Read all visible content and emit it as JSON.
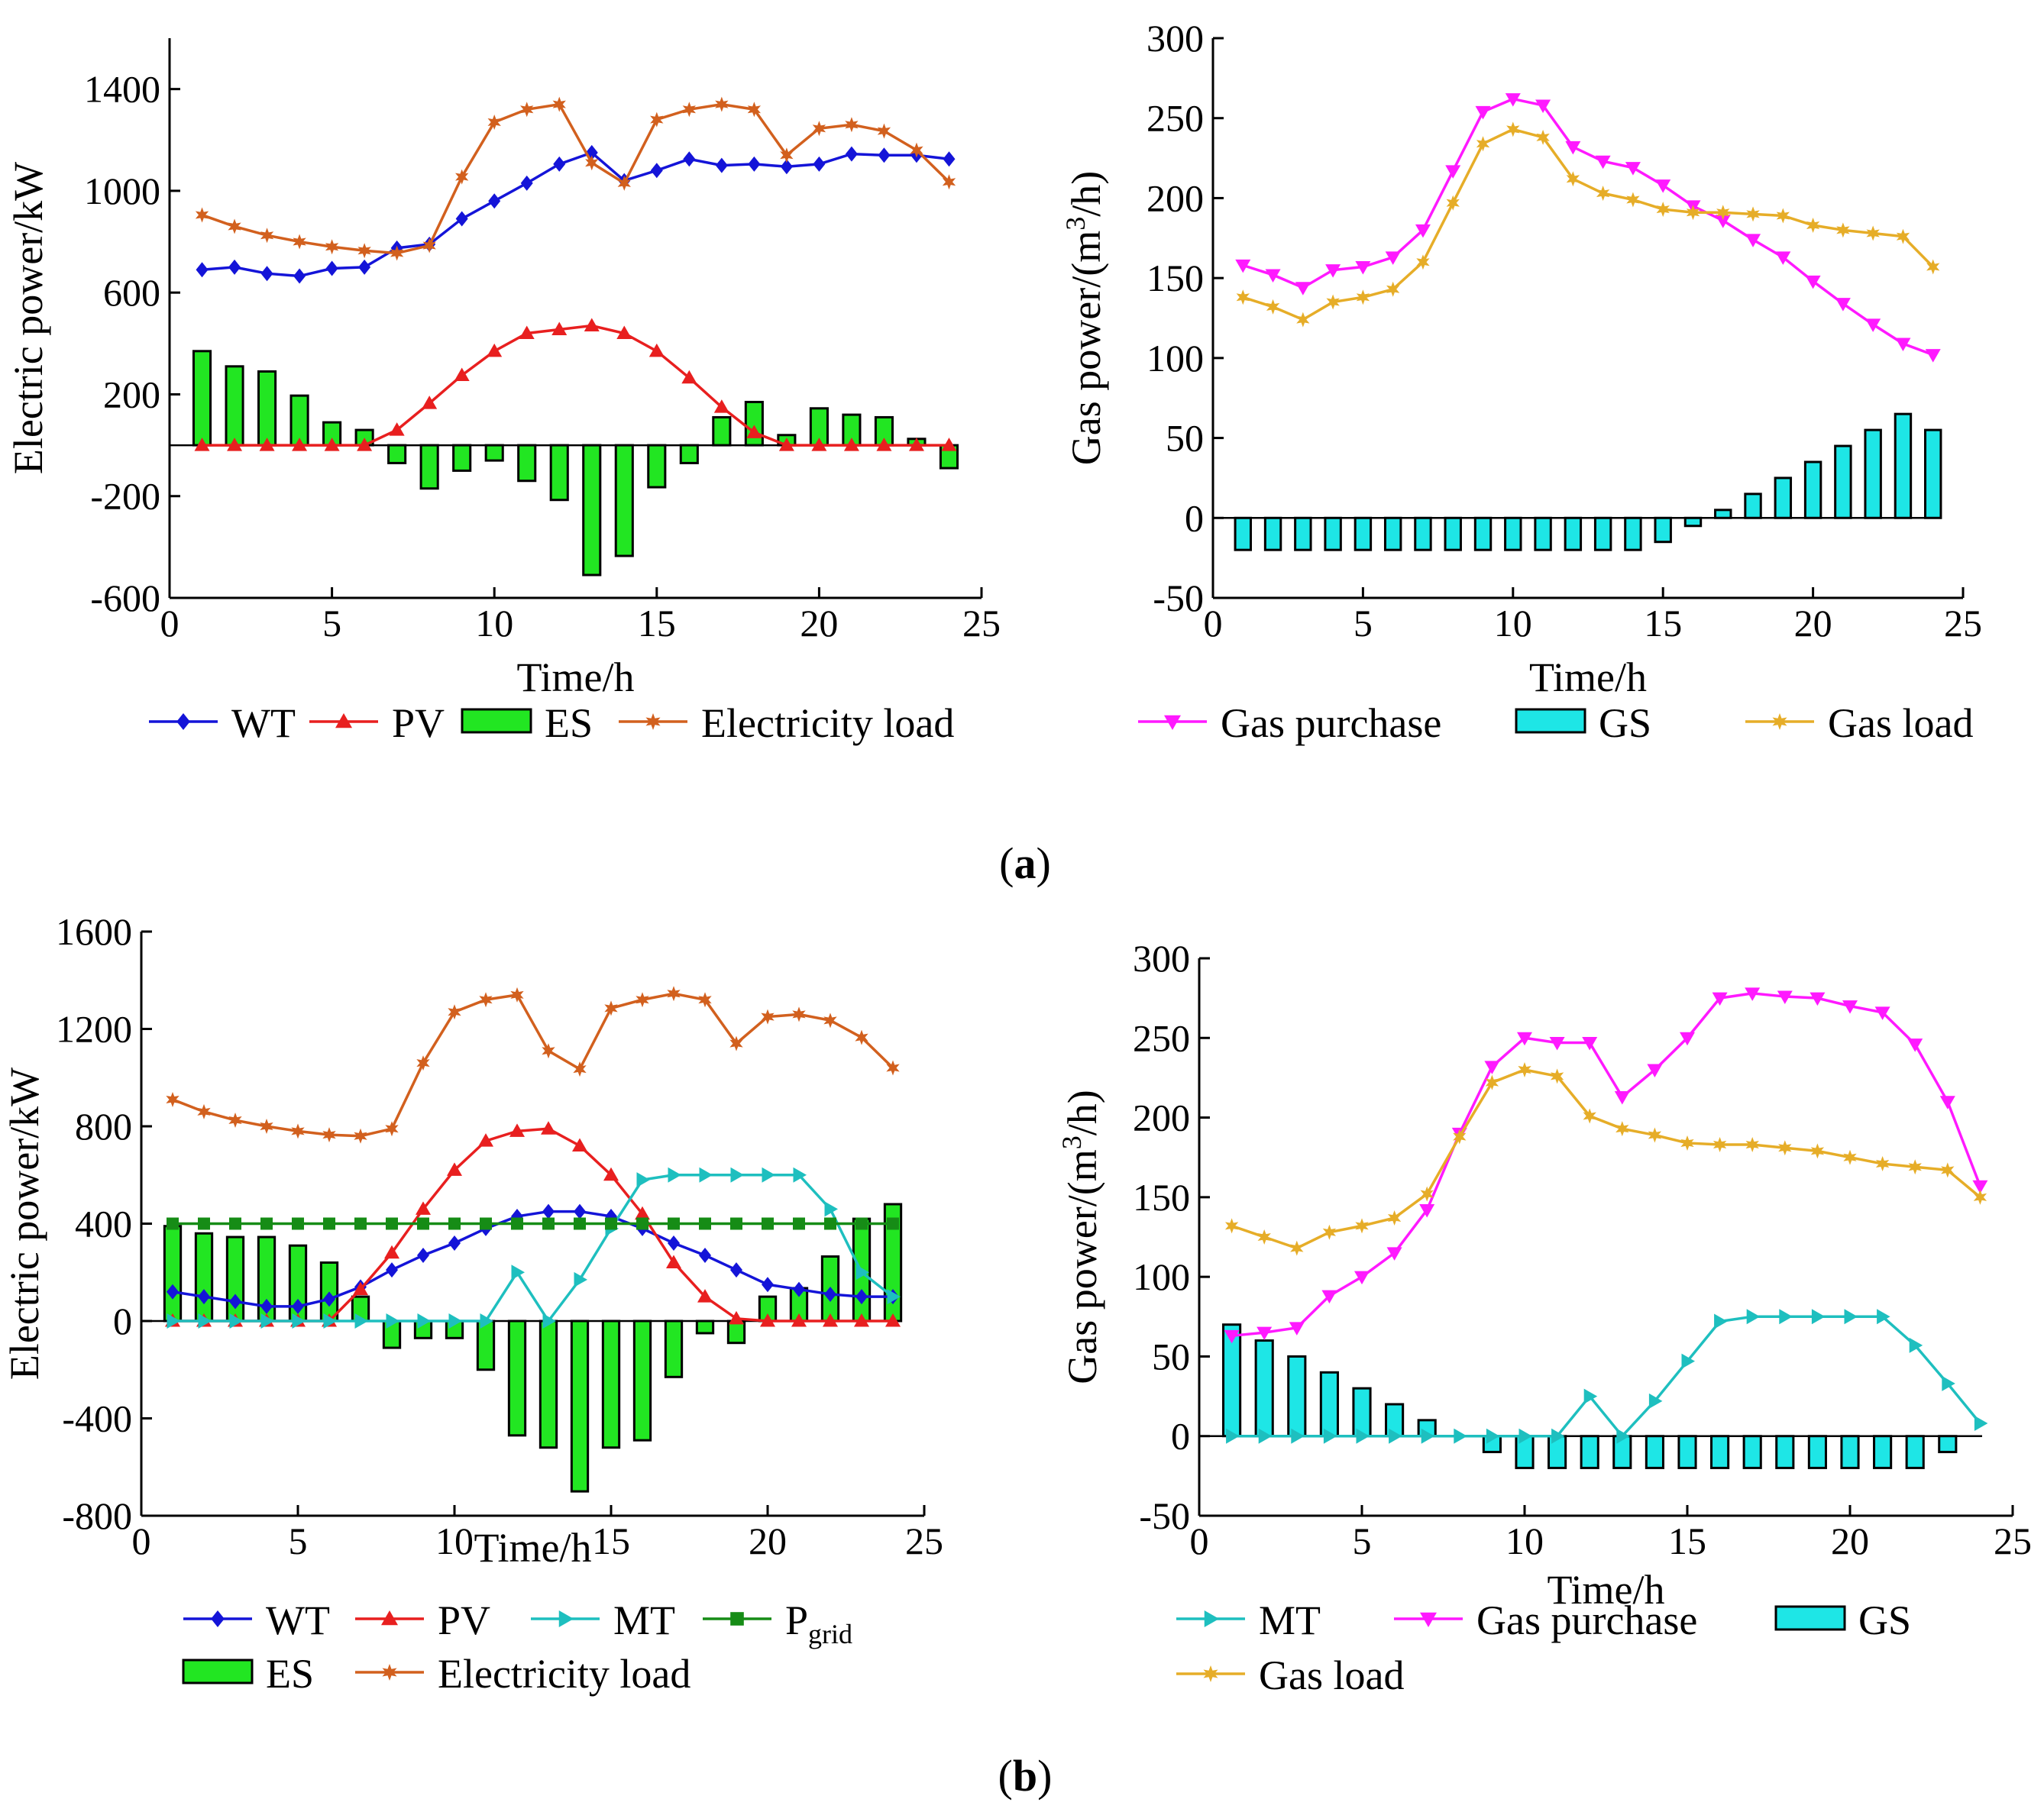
{
  "figure": {
    "panel_labels": [
      {
        "open": "(",
        "letter": "a",
        "close": ")"
      },
      {
        "open": "(",
        "letter": "b",
        "close": ")"
      }
    ]
  },
  "chart_data": [
    {
      "id": "a-electric",
      "type": "line",
      "xlabel": "Time/h",
      "ylabel": "Electric power/kW",
      "xlim": [
        0,
        25
      ],
      "ylim": [
        -600,
        1600
      ],
      "xticks": [
        0,
        5,
        10,
        15,
        20,
        25
      ],
      "yticks": [
        -600,
        -200,
        200,
        600,
        1000,
        1400
      ],
      "x": [
        1,
        2,
        3,
        4,
        5,
        6,
        7,
        8,
        9,
        10,
        11,
        12,
        13,
        14,
        15,
        16,
        17,
        18,
        19,
        20,
        21,
        22,
        23,
        24
      ],
      "series": [
        {
          "name": "WT",
          "kind": "line",
          "color": "#1414d8",
          "marker": "diamond",
          "values": [
            690,
            700,
            675,
            665,
            695,
            700,
            775,
            790,
            890,
            960,
            1030,
            1105,
            1150,
            1040,
            1080,
            1125,
            1100,
            1105,
            1095,
            1105,
            1145,
            1140,
            1140,
            1125
          ]
        },
        {
          "name": "PV",
          "kind": "line",
          "color": "#e81f1f",
          "marker": "triangle-up",
          "values": [
            0,
            0,
            0,
            0,
            0,
            0,
            60,
            165,
            275,
            370,
            440,
            455,
            470,
            440,
            370,
            265,
            150,
            50,
            0,
            0,
            0,
            0,
            0,
            0
          ]
        },
        {
          "name": "ES",
          "kind": "bar",
          "color": "#22e622",
          "values": [
            370,
            310,
            290,
            195,
            90,
            60,
            -70,
            -170,
            -100,
            -60,
            -140,
            -215,
            -510,
            -435,
            -165,
            -70,
            110,
            170,
            40,
            145,
            120,
            110,
            25,
            -90
          ]
        },
        {
          "name": "Electricity load",
          "kind": "line",
          "color": "#d2601e",
          "marker": "star",
          "values": [
            905,
            860,
            825,
            800,
            780,
            765,
            755,
            785,
            1055,
            1270,
            1320,
            1340,
            1110,
            1030,
            1280,
            1320,
            1340,
            1320,
            1140,
            1245,
            1260,
            1235,
            1160,
            1035
          ]
        }
      ],
      "legend": [
        "WT",
        "PV",
        "ES",
        "Electricity load"
      ]
    },
    {
      "id": "a-gas",
      "type": "line",
      "xlabel": "Time/h",
      "ylabel": "Gas power/(m",
      "ylabel_sup": "3",
      "ylabel_tail": "/h)",
      "xlim": [
        0,
        25
      ],
      "ylim": [
        -50,
        300
      ],
      "xticks": [
        0,
        5,
        10,
        15,
        20,
        25
      ],
      "yticks": [
        -50,
        0,
        50,
        100,
        150,
        200,
        250,
        300
      ],
      "x": [
        1,
        2,
        3,
        4,
        5,
        6,
        7,
        8,
        9,
        10,
        11,
        12,
        13,
        14,
        15,
        16,
        17,
        18,
        19,
        20,
        21,
        22,
        23,
        24
      ],
      "series": [
        {
          "name": "Gas purchase",
          "kind": "line",
          "color": "#ff19ff",
          "marker": "triangle-down",
          "values": [
            158,
            152,
            144,
            155,
            157,
            163,
            180,
            217,
            254,
            262,
            258,
            232,
            223,
            219,
            208,
            195,
            186,
            174,
            163,
            148,
            134,
            121,
            109,
            102
          ]
        },
        {
          "name": "GS",
          "kind": "bar",
          "color": "#1ee6e6",
          "values": [
            -20,
            -20,
            -20,
            -20,
            -20,
            -20,
            -20,
            -20,
            -20,
            -20,
            -20,
            -20,
            -20,
            -20,
            -15,
            -5,
            5,
            15,
            25,
            35,
            45,
            55,
            65,
            55
          ]
        },
        {
          "name": "Gas load",
          "kind": "line",
          "color": "#e6ad28",
          "marker": "star",
          "values": [
            138,
            132,
            124,
            135,
            138,
            143,
            160,
            197,
            234,
            243,
            238,
            212,
            203,
            199,
            193,
            191,
            191,
            190,
            189,
            183,
            180,
            178,
            176,
            157
          ]
        }
      ],
      "legend": [
        "Gas purchase",
        "GS",
        "Gas load"
      ]
    },
    {
      "id": "b-electric",
      "type": "line",
      "xlabel": "Time/h",
      "ylabel": "Electric power/kW",
      "xlim": [
        0,
        25
      ],
      "ylim": [
        -800,
        1600
      ],
      "xticks": [
        0,
        5,
        10,
        15,
        20,
        25
      ],
      "yticks": [
        -800,
        -400,
        0,
        400,
        800,
        1200,
        1600
      ],
      "x": [
        1,
        2,
        3,
        4,
        5,
        6,
        7,
        8,
        9,
        10,
        11,
        12,
        13,
        14,
        15,
        16,
        17,
        18,
        19,
        20,
        21,
        22,
        23,
        24
      ],
      "series": [
        {
          "name": "WT",
          "kind": "line",
          "color": "#1414d8",
          "marker": "diamond",
          "values": [
            120,
            100,
            80,
            60,
            60,
            90,
            140,
            210,
            270,
            320,
            380,
            430,
            450,
            450,
            430,
            380,
            320,
            270,
            210,
            150,
            130,
            110,
            100,
            100
          ]
        },
        {
          "name": "PV",
          "kind": "line",
          "color": "#e81f1f",
          "marker": "triangle-up",
          "values": [
            0,
            0,
            0,
            0,
            0,
            0,
            130,
            280,
            460,
            620,
            740,
            780,
            790,
            720,
            600,
            440,
            240,
            100,
            10,
            0,
            0,
            0,
            0,
            0
          ]
        },
        {
          "name": "MT",
          "kind": "line",
          "color": "#1ebfbf",
          "marker": "triangle-right",
          "values": [
            0,
            0,
            0,
            0,
            0,
            0,
            0,
            0,
            0,
            0,
            0,
            200,
            0,
            170,
            380,
            580,
            600,
            600,
            600,
            600,
            600,
            460,
            200,
            100
          ]
        },
        {
          "name": "P",
          "name_sub": "grid",
          "kind": "line",
          "color": "#168c16",
          "marker": "square",
          "values": [
            400,
            400,
            400,
            400,
            400,
            400,
            400,
            400,
            400,
            400,
            400,
            400,
            400,
            400,
            400,
            400,
            400,
            400,
            400,
            400,
            400,
            400,
            400,
            400
          ]
        },
        {
          "name": "ES",
          "kind": "bar",
          "color": "#22e622",
          "values": [
            390,
            360,
            345,
            345,
            310,
            240,
            100,
            -110,
            -70,
            -70,
            -200,
            -470,
            -520,
            -700,
            -520,
            -490,
            -230,
            -50,
            -90,
            100,
            135,
            265,
            420,
            480
          ]
        },
        {
          "name": "Electricity load",
          "kind": "line",
          "color": "#d2601e",
          "marker": "star",
          "values": [
            910,
            860,
            825,
            800,
            780,
            765,
            760,
            790,
            1060,
            1270,
            1320,
            1340,
            1110,
            1035,
            1285,
            1320,
            1345,
            1320,
            1140,
            1250,
            1260,
            1235,
            1165,
            1040
          ]
        }
      ],
      "legend": [
        "WT",
        "PV",
        "MT",
        "Pgrid",
        "ES",
        "Electricity load"
      ]
    },
    {
      "id": "b-gas",
      "type": "line",
      "xlabel": "Time/h",
      "ylabel": "Gas power/(m",
      "ylabel_sup": "3",
      "ylabel_tail": "/h)",
      "xlim": [
        0,
        25
      ],
      "ylim": [
        -50,
        300
      ],
      "xticks": [
        0,
        5,
        10,
        15,
        20,
        25
      ],
      "yticks": [
        -50,
        0,
        50,
        100,
        150,
        200,
        250,
        300
      ],
      "x": [
        1,
        2,
        3,
        4,
        5,
        6,
        7,
        8,
        9,
        10,
        11,
        12,
        13,
        14,
        15,
        16,
        17,
        18,
        19,
        20,
        21,
        22,
        23,
        24
      ],
      "series": [
        {
          "name": "MT",
          "kind": "line",
          "color": "#1ebfbf",
          "marker": "triangle-right",
          "values": [
            0,
            0,
            0,
            0,
            0,
            0,
            0,
            0,
            0,
            0,
            0,
            25,
            0,
            22,
            47,
            72,
            75,
            75,
            75,
            75,
            75,
            57,
            33,
            8
          ]
        },
        {
          "name": "Gas purchase",
          "kind": "line",
          "color": "#ff19ff",
          "marker": "triangle-down",
          "values": [
            63,
            65,
            68,
            88,
            100,
            115,
            142,
            190,
            232,
            250,
            247,
            247,
            213,
            230,
            250,
            275,
            278,
            276,
            275,
            270,
            266,
            246,
            210,
            157
          ]
        },
        {
          "name": "GS",
          "kind": "bar",
          "color": "#1ee6e6",
          "values": [
            70,
            60,
            50,
            40,
            30,
            20,
            10,
            0,
            -10,
            -20,
            -20,
            -20,
            -20,
            -20,
            -20,
            -20,
            -20,
            -20,
            -20,
            -20,
            -20,
            -20,
            -10,
            0
          ]
        },
        {
          "name": "Gas load",
          "kind": "line",
          "color": "#e6ad28",
          "marker": "star",
          "values": [
            132,
            125,
            118,
            128,
            132,
            137,
            152,
            188,
            222,
            230,
            226,
            201,
            193,
            189,
            184,
            183,
            183,
            181,
            179,
            175,
            171,
            169,
            167,
            150
          ]
        }
      ],
      "legend": [
        "MT",
        "Gas purchase",
        "GS",
        "Gas load"
      ]
    }
  ]
}
